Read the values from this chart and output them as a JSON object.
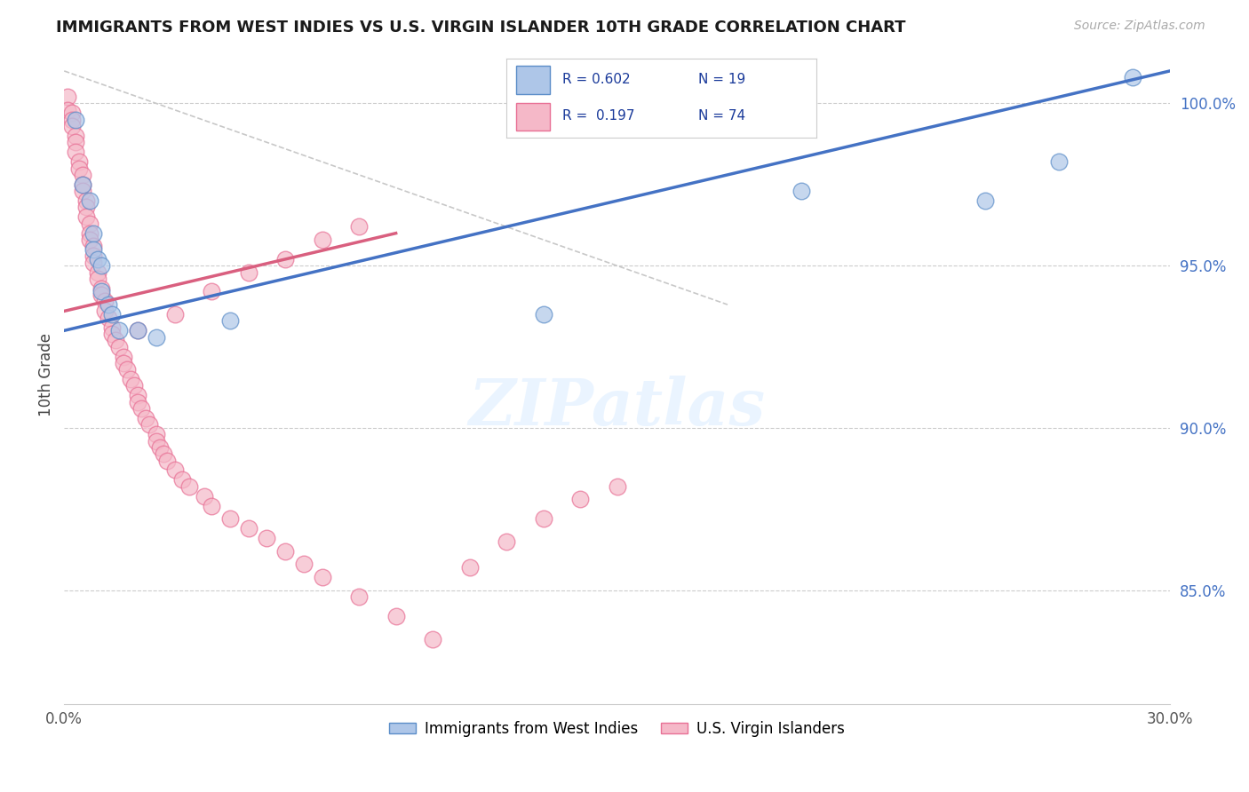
{
  "title": "IMMIGRANTS FROM WEST INDIES VS U.S. VIRGIN ISLANDER 10TH GRADE CORRELATION CHART",
  "source": "Source: ZipAtlas.com",
  "xlabel_bottom": "Immigrants from West Indies",
  "xlabel_bottom2": "U.S. Virgin Islanders",
  "ylabel": "10th Grade",
  "xlim": [
    0.0,
    0.3
  ],
  "ylim": [
    0.815,
    1.018
  ],
  "xticks": [
    0.0,
    0.05,
    0.1,
    0.15,
    0.2,
    0.25,
    0.3
  ],
  "xticklabels": [
    "0.0%",
    "",
    "",
    "",
    "",
    "",
    "30.0%"
  ],
  "yticks_right": [
    0.85,
    0.9,
    0.95,
    1.0
  ],
  "ytick_right_labels": [
    "85.0%",
    "90.0%",
    "95.0%",
    "100.0%"
  ],
  "R_blue": 0.602,
  "N_blue": 19,
  "R_pink": 0.197,
  "N_pink": 74,
  "blue_color": "#aec6e8",
  "pink_color": "#f5b8c8",
  "blue_edge_color": "#5b8dc8",
  "pink_edge_color": "#e87095",
  "blue_line_color": "#4472c4",
  "pink_line_color": "#d95f7f",
  "ref_line_color": "#c8c8c8",
  "background_color": "#ffffff",
  "blue_scatter_x": [
    0.003,
    0.005,
    0.007,
    0.008,
    0.008,
    0.009,
    0.01,
    0.01,
    0.012,
    0.013,
    0.015,
    0.02,
    0.025,
    0.045,
    0.13,
    0.2,
    0.25,
    0.27,
    0.29
  ],
  "blue_scatter_y": [
    0.995,
    0.975,
    0.97,
    0.96,
    0.955,
    0.952,
    0.95,
    0.942,
    0.938,
    0.935,
    0.93,
    0.93,
    0.928,
    0.933,
    0.935,
    0.973,
    0.97,
    0.982,
    1.008
  ],
  "pink_scatter_x": [
    0.001,
    0.001,
    0.002,
    0.002,
    0.002,
    0.003,
    0.003,
    0.003,
    0.004,
    0.004,
    0.005,
    0.005,
    0.005,
    0.006,
    0.006,
    0.006,
    0.007,
    0.007,
    0.007,
    0.008,
    0.008,
    0.008,
    0.009,
    0.009,
    0.01,
    0.01,
    0.011,
    0.011,
    0.012,
    0.013,
    0.013,
    0.014,
    0.015,
    0.016,
    0.016,
    0.017,
    0.018,
    0.019,
    0.02,
    0.02,
    0.021,
    0.022,
    0.023,
    0.025,
    0.025,
    0.026,
    0.027,
    0.028,
    0.03,
    0.032,
    0.034,
    0.038,
    0.04,
    0.045,
    0.05,
    0.055,
    0.06,
    0.065,
    0.07,
    0.08,
    0.09,
    0.1,
    0.11,
    0.12,
    0.13,
    0.14,
    0.15,
    0.02,
    0.03,
    0.04,
    0.05,
    0.06,
    0.07,
    0.08
  ],
  "pink_scatter_y": [
    1.002,
    0.998,
    0.997,
    0.995,
    0.993,
    0.99,
    0.988,
    0.985,
    0.982,
    0.98,
    0.978,
    0.975,
    0.973,
    0.97,
    0.968,
    0.965,
    0.963,
    0.96,
    0.958,
    0.956,
    0.953,
    0.951,
    0.948,
    0.946,
    0.943,
    0.941,
    0.939,
    0.936,
    0.934,
    0.931,
    0.929,
    0.927,
    0.925,
    0.922,
    0.92,
    0.918,
    0.915,
    0.913,
    0.91,
    0.908,
    0.906,
    0.903,
    0.901,
    0.898,
    0.896,
    0.894,
    0.892,
    0.89,
    0.887,
    0.884,
    0.882,
    0.879,
    0.876,
    0.872,
    0.869,
    0.866,
    0.862,
    0.858,
    0.854,
    0.848,
    0.842,
    0.835,
    0.857,
    0.865,
    0.872,
    0.878,
    0.882,
    0.93,
    0.935,
    0.942,
    0.948,
    0.952,
    0.958,
    0.962
  ],
  "blue_trendline_x0": 0.0,
  "blue_trendline_y0": 0.93,
  "blue_trendline_x1": 0.3,
  "blue_trendline_y1": 1.01,
  "pink_trendline_x0": 0.0,
  "pink_trendline_y0": 0.936,
  "pink_trendline_x1": 0.09,
  "pink_trendline_y1": 0.96,
  "ref_line_x0": 0.0,
  "ref_line_y0": 1.01,
  "ref_line_x1": 0.18,
  "ref_line_y1": 0.938
}
